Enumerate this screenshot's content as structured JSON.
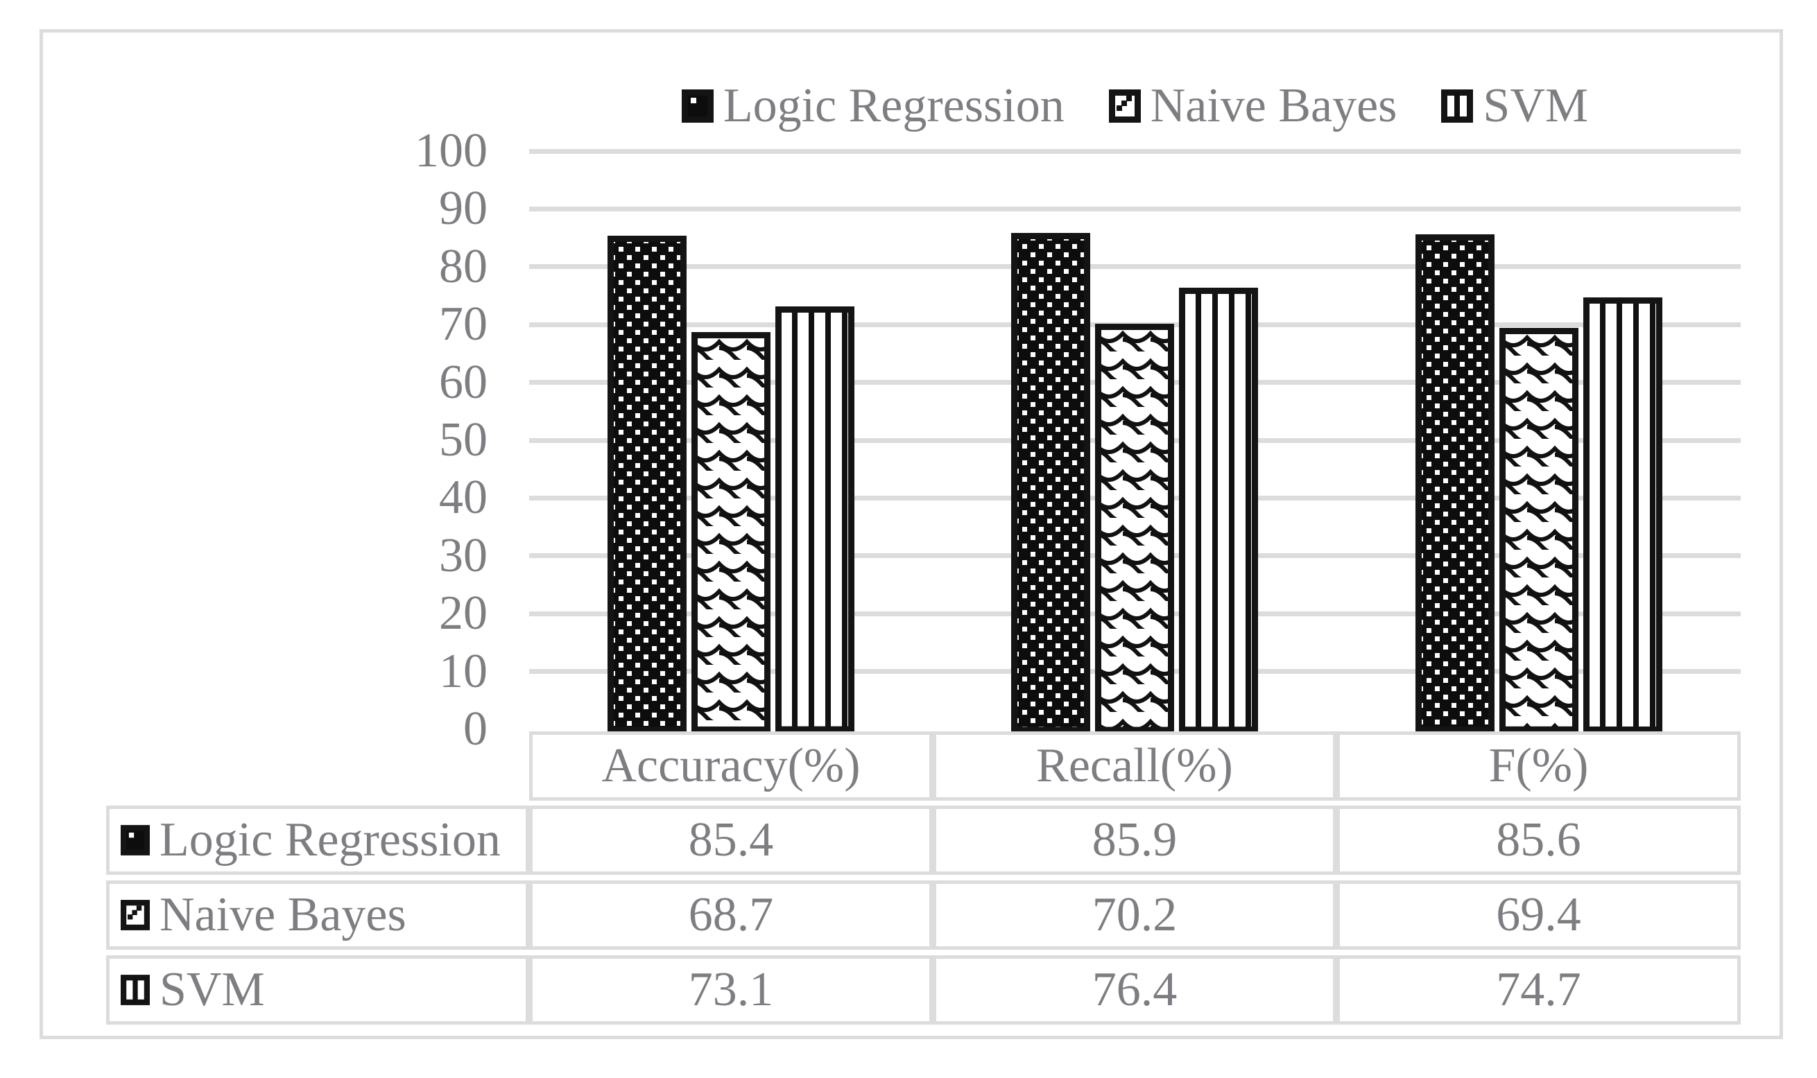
{
  "legend": {
    "items": [
      {
        "label": "Logic Regression"
      },
      {
        "label": "Naive Bayes"
      },
      {
        "label": "SVM"
      }
    ]
  },
  "chart_data": {
    "type": "bar",
    "title": "",
    "xlabel": "",
    "ylabel": "",
    "categories": [
      "Accuracy(%)",
      "Recall(%)",
      "F(%)"
    ],
    "series": [
      {
        "name": "Logic Regression",
        "pattern": "white-dots-on-black",
        "values": [
          85.4,
          85.9,
          85.6
        ]
      },
      {
        "name": "Naive Bayes",
        "pattern": "black-scales-on-white",
        "values": [
          68.7,
          70.2,
          69.4
        ]
      },
      {
        "name": "SVM",
        "pattern": "black-vertical-stripes-on-white",
        "values": [
          73.1,
          76.4,
          74.7
        ]
      }
    ],
    "ylim": [
      0,
      100
    ],
    "yticks": [
      0,
      10,
      20,
      30,
      40,
      50,
      60,
      70,
      80,
      90,
      100
    ],
    "grid": true,
    "legend_position": "top"
  },
  "table": {
    "headers": [
      "Accuracy(%)",
      "Recall(%)",
      "F(%)"
    ],
    "rows": [
      {
        "label": "Logic Regression",
        "values": [
          "85.4",
          "85.9",
          "85.6"
        ]
      },
      {
        "label": "Naive Bayes",
        "values": [
          "68.7",
          "70.2",
          "69.4"
        ]
      },
      {
        "label": "SVM",
        "values": [
          "73.1",
          "76.4",
          "74.7"
        ]
      }
    ]
  },
  "colors": {
    "text": "#7f7d82",
    "grid": "#dcdcde",
    "bar_outline": "#141414",
    "background": "#ffffff"
  }
}
